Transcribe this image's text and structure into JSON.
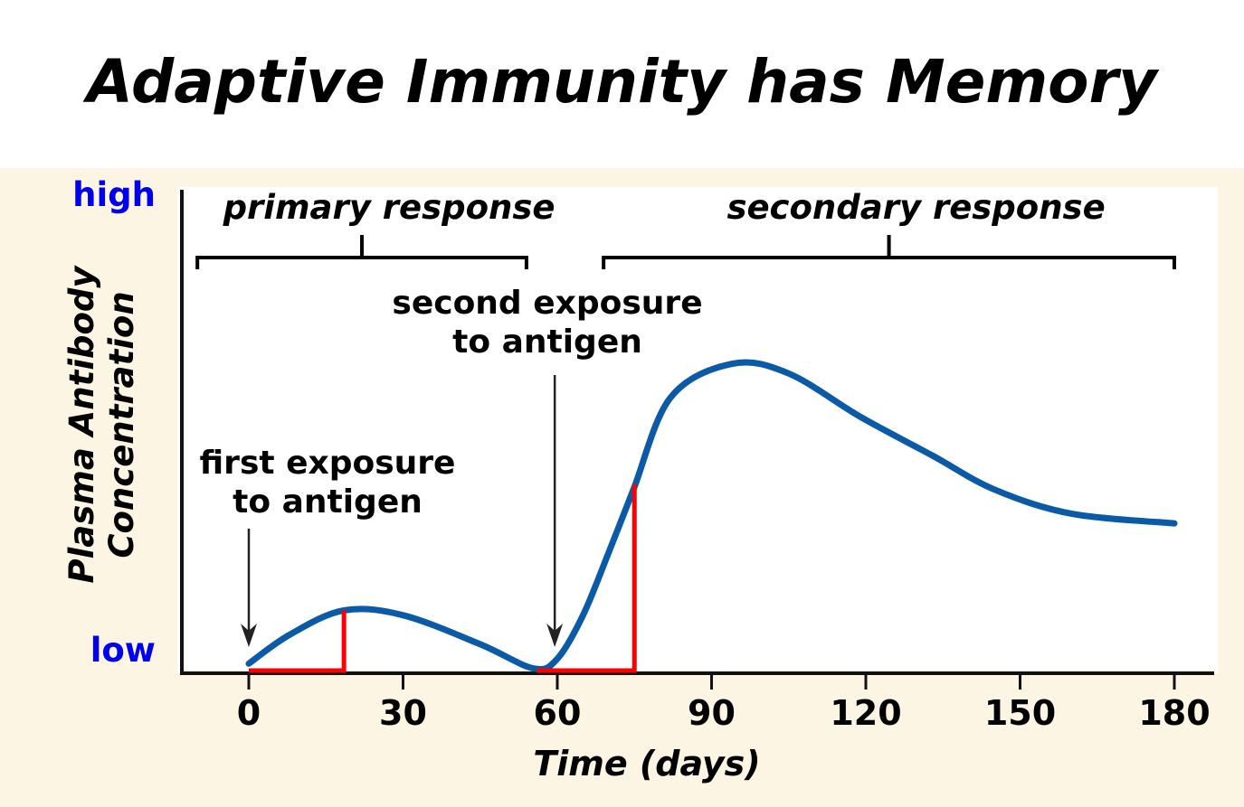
{
  "chart_data": {
    "type": "line",
    "title": "Adaptive Immunity has Memory",
    "xlabel": "Time (days)",
    "ylabel": "Plasma Antibody Concentration",
    "ylabel_lines": [
      "Plasma Antibody",
      "Concentration"
    ],
    "y_tick_labels": {
      "high": "high",
      "low": "low"
    },
    "xlim": [
      0,
      180
    ],
    "ylim": [
      0,
      1
    ],
    "x_ticks": [
      0,
      30,
      60,
      90,
      120,
      150,
      180
    ],
    "x_tick_labels": [
      "0",
      "30",
      "60",
      "90",
      "120",
      "150",
      "180"
    ],
    "series": [
      {
        "name": "antibody concentration",
        "color": "#0a5aa8",
        "x": [
          0,
          8,
          18.5,
          30,
          45,
          55.4,
          60,
          65,
          70,
          74.8,
          82,
          94,
          105,
          119,
          133,
          145,
          160,
          180
        ],
        "y": [
          0.02,
          0.08,
          0.13,
          0.12,
          0.06,
          0.01,
          0.03,
          0.12,
          0.25,
          0.38,
          0.57,
          0.64,
          0.62,
          0.53,
          0.45,
          0.38,
          0.33,
          0.31
        ]
      }
    ],
    "lag_markers": [
      {
        "x_start": 0,
        "x_end": 18.5,
        "y_peak": 0.13
      },
      {
        "x_start": 56,
        "x_end": 75,
        "y_peak": 0.39
      }
    ],
    "marker_color": "#ff0000",
    "annotations": [
      {
        "label": "primary response",
        "x_range": [
          -10,
          54
        ]
      },
      {
        "label": "secondary response",
        "x_range": [
          69,
          180
        ]
      },
      {
        "label_lines": [
          "first exposure",
          "to antigen"
        ],
        "arrow_x": 0
      },
      {
        "label_lines": [
          "second exposure",
          "to antigen"
        ],
        "arrow_x": 59.5
      }
    ],
    "grid": false
  }
}
